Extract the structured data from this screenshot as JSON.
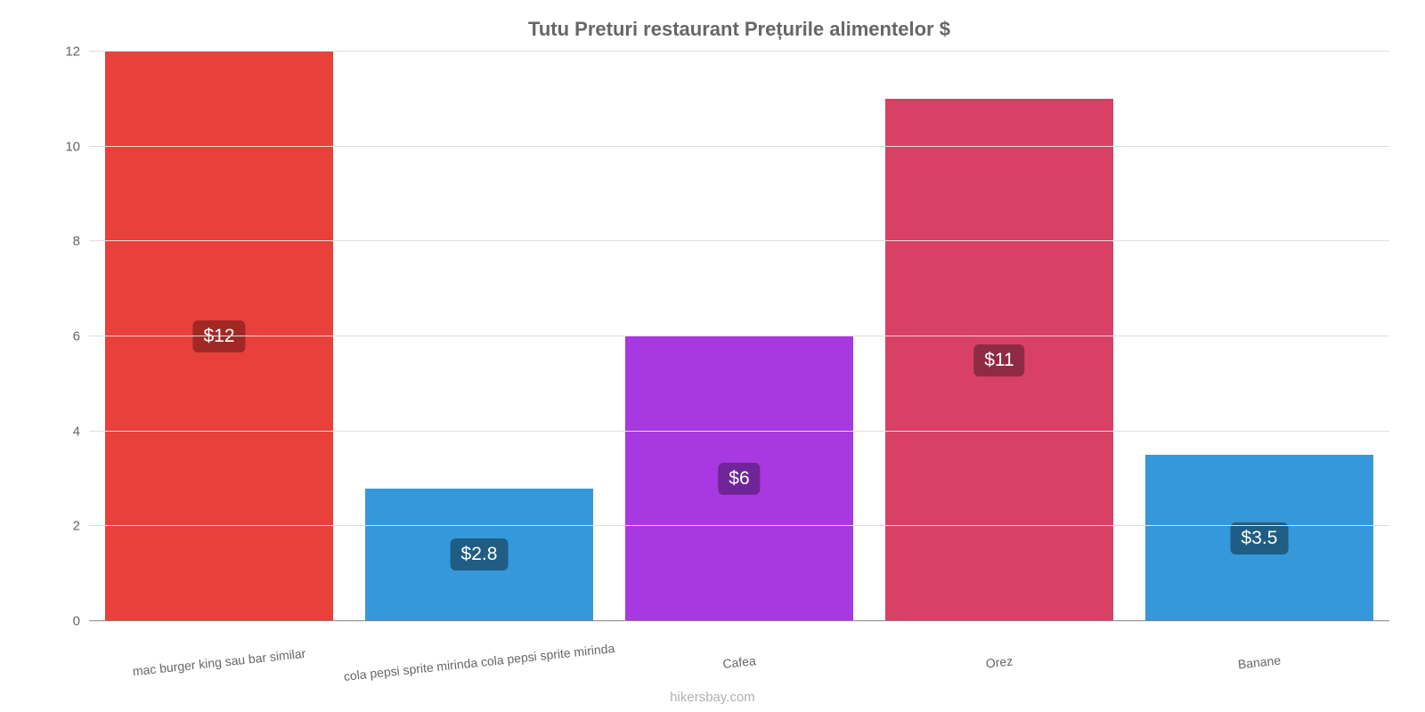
{
  "chart": {
    "type": "bar",
    "title": "Tutu Preturi restaurant Prețurile alimentelor $",
    "title_fontsize": 22,
    "title_color": "#666666",
    "background_color": "#ffffff",
    "grid_color": "#dddddd",
    "axis_color": "#888888",
    "label_color": "#666666",
    "tick_fontsize": 15,
    "xlabel_fontsize": 14,
    "value_fontsize": 21,
    "ylim_min": 0,
    "ylim_max": 12,
    "ytick_step": 2,
    "yticks": [
      {
        "v": 0,
        "label": "0"
      },
      {
        "v": 2,
        "label": "2"
      },
      {
        "v": 4,
        "label": "4"
      },
      {
        "v": 6,
        "label": "6"
      },
      {
        "v": 8,
        "label": "8"
      },
      {
        "v": 10,
        "label": "10"
      },
      {
        "v": 12,
        "label": "12"
      }
    ],
    "bar_width_pct": 88,
    "bars": [
      {
        "category": "mac burger king sau bar similar",
        "value": 12.0,
        "value_label": "$12",
        "color": "#e8403a",
        "badge_bg": "#a02825"
      },
      {
        "category": "cola pepsi sprite mirinda cola pepsi sprite mirinda",
        "value": 2.8,
        "value_label": "$2.8",
        "color": "#3498db",
        "badge_bg": "#1f5d84"
      },
      {
        "category": "Cafea",
        "value": 6.0,
        "value_label": "$6",
        "color": "#a838e0",
        "badge_bg": "#6f2598"
      },
      {
        "category": "Orez",
        "value": 11.0,
        "value_label": "$11",
        "color": "#d94065",
        "badge_bg": "#8f2a43"
      },
      {
        "category": "Banane",
        "value": 3.5,
        "value_label": "$3.5",
        "color": "#3498db",
        "badge_bg": "#1f5d84"
      }
    ],
    "watermark": "hikersbay.com",
    "watermark_color": "#b0b0b0"
  }
}
